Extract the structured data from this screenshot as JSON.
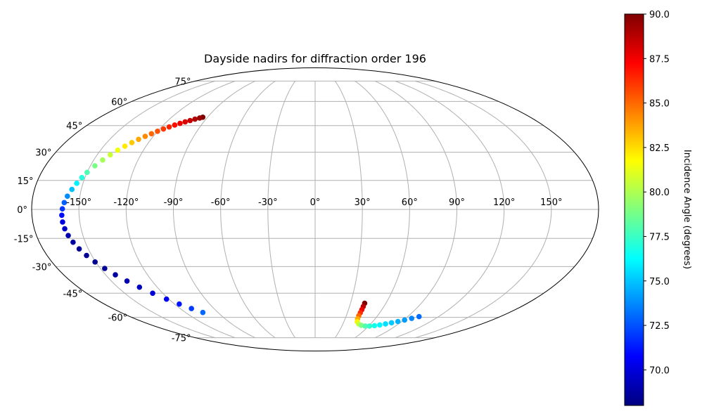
{
  "chart_data": {
    "type": "scatter",
    "projection": "mollweide",
    "title": "Dayside nadirs for diffraction order 196",
    "xlabel": "",
    "ylabel": "",
    "grid": true,
    "lon_ticks": [
      "-150°",
      "-120°",
      "-90°",
      "-60°",
      "-30°",
      "0°",
      "30°",
      "60°",
      "90°",
      "120°",
      "150°"
    ],
    "lat_ticks": [
      "75°",
      "60°",
      "45°",
      "30°",
      "15°",
      "0°",
      "-15°",
      "-30°",
      "-45°",
      "-60°",
      "-75°"
    ],
    "colorbar": {
      "label": "Incidence Angle (degrees)",
      "range": [
        68.0,
        90.0
      ],
      "ticks": [
        "70.0",
        "72.5",
        "75.0",
        "77.5",
        "80.0",
        "82.5",
        "85.0",
        "87.5",
        "90.0"
      ],
      "colormap": "jet"
    },
    "series": [
      {
        "points": [
          {
            "lon": -94,
            "lat": 50,
            "inc": 90.0
          },
          {
            "lon": -96,
            "lat": 49.5,
            "inc": 89.5
          },
          {
            "lon": -99,
            "lat": 48.8,
            "inc": 89.0
          },
          {
            "lon": -102,
            "lat": 48,
            "inc": 88.5
          },
          {
            "lon": -105,
            "lat": 47.2,
            "inc": 88.0
          },
          {
            "lon": -108,
            "lat": 46.3,
            "inc": 87.5
          },
          {
            "lon": -111,
            "lat": 45.3,
            "inc": 87.0
          },
          {
            "lon": -114,
            "lat": 44.2,
            "inc": 86.5
          },
          {
            "lon": -117,
            "lat": 43,
            "inc": 86.0
          },
          {
            "lon": -120,
            "lat": 41.7,
            "inc": 85.5
          },
          {
            "lon": -123,
            "lat": 40.3,
            "inc": 85.0
          },
          {
            "lon": -126,
            "lat": 38.8,
            "inc": 84.3
          },
          {
            "lon": -129,
            "lat": 37.1,
            "inc": 83.6
          },
          {
            "lon": -132,
            "lat": 35.3,
            "inc": 82.9
          },
          {
            "lon": -135,
            "lat": 33.3,
            "inc": 82.2
          },
          {
            "lon": -138,
            "lat": 31.1,
            "inc": 81.4
          },
          {
            "lon": -141,
            "lat": 28.6,
            "inc": 80.6
          },
          {
            "lon": -144,
            "lat": 25.8,
            "inc": 79.8
          },
          {
            "lon": -147,
            "lat": 22.7,
            "inc": 78.9
          },
          {
            "lon": -150,
            "lat": 19.2,
            "inc": 77.9
          },
          {
            "lon": -152,
            "lat": 16.5,
            "inc": 77.0
          },
          {
            "lon": -154,
            "lat": 13.5,
            "inc": 76.0
          },
          {
            "lon": -156,
            "lat": 10.3,
            "inc": 74.9
          },
          {
            "lon": -158,
            "lat": 6.8,
            "inc": 73.8
          },
          {
            "lon": -159.5,
            "lat": 3.5,
            "inc": 72.8
          },
          {
            "lon": -160.5,
            "lat": 0.3,
            "inc": 71.9
          },
          {
            "lon": -161,
            "lat": -3,
            "inc": 71.0
          },
          {
            "lon": -161,
            "lat": -6.5,
            "inc": 70.2
          },
          {
            "lon": -160.5,
            "lat": -10,
            "inc": 69.5
          },
          {
            "lon": -159.5,
            "lat": -13.5,
            "inc": 69.0
          },
          {
            "lon": -158,
            "lat": -17,
            "inc": 68.7
          },
          {
            "lon": -156,
            "lat": -20.5,
            "inc": 68.5
          },
          {
            "lon": -153.5,
            "lat": -24,
            "inc": 68.4
          },
          {
            "lon": -150.5,
            "lat": -27.5,
            "inc": 68.4
          },
          {
            "lon": -147,
            "lat": -31,
            "inc": 68.5
          },
          {
            "lon": -143,
            "lat": -34.5,
            "inc": 68.7
          },
          {
            "lon": -138.5,
            "lat": -38,
            "inc": 69.0
          },
          {
            "lon": -133.5,
            "lat": -41.5,
            "inc": 69.4
          },
          {
            "lon": -128,
            "lat": -45,
            "inc": 69.9
          },
          {
            "lon": -122,
            "lat": -48.5,
            "inc": 70.5
          },
          {
            "lon": -116,
            "lat": -51.5,
            "inc": 71.2
          },
          {
            "lon": -110,
            "lat": -54.3,
            "inc": 72.0
          },
          {
            "lon": -104,
            "lat": -56.8,
            "inc": 73.0
          },
          {
            "lon": 42,
            "lat": -51,
            "inc": 90.0
          },
          {
            "lon": 42,
            "lat": -53,
            "inc": 88.8
          },
          {
            "lon": 42,
            "lat": -55,
            "inc": 87.5
          },
          {
            "lon": 42,
            "lat": -57,
            "inc": 86.3
          },
          {
            "lon": 42,
            "lat": -59,
            "inc": 85.0
          },
          {
            "lon": 42.5,
            "lat": -61,
            "inc": 83.5
          },
          {
            "lon": 44,
            "lat": -63,
            "inc": 82.0
          },
          {
            "lon": 47,
            "lat": -64.5,
            "inc": 80.5
          },
          {
            "lon": 51,
            "lat": -65.5,
            "inc": 79.0
          },
          {
            "lon": 56,
            "lat": -66,
            "inc": 78.0
          },
          {
            "lon": 61,
            "lat": -66,
            "inc": 77.3
          },
          {
            "lon": 66,
            "lat": -65.7,
            "inc": 76.7
          },
          {
            "lon": 71,
            "lat": -65.2,
            "inc": 76.1
          },
          {
            "lon": 76,
            "lat": -64.5,
            "inc": 75.6
          },
          {
            "lon": 81,
            "lat": -63.7,
            "inc": 75.1
          },
          {
            "lon": 86,
            "lat": -62.8,
            "inc": 74.6
          },
          {
            "lon": 91,
            "lat": -61.8,
            "inc": 74.1
          },
          {
            "lon": 96,
            "lat": -60.7,
            "inc": 73.6
          },
          {
            "lon": 101,
            "lat": -59.5,
            "inc": 73.1
          }
        ]
      }
    ]
  }
}
